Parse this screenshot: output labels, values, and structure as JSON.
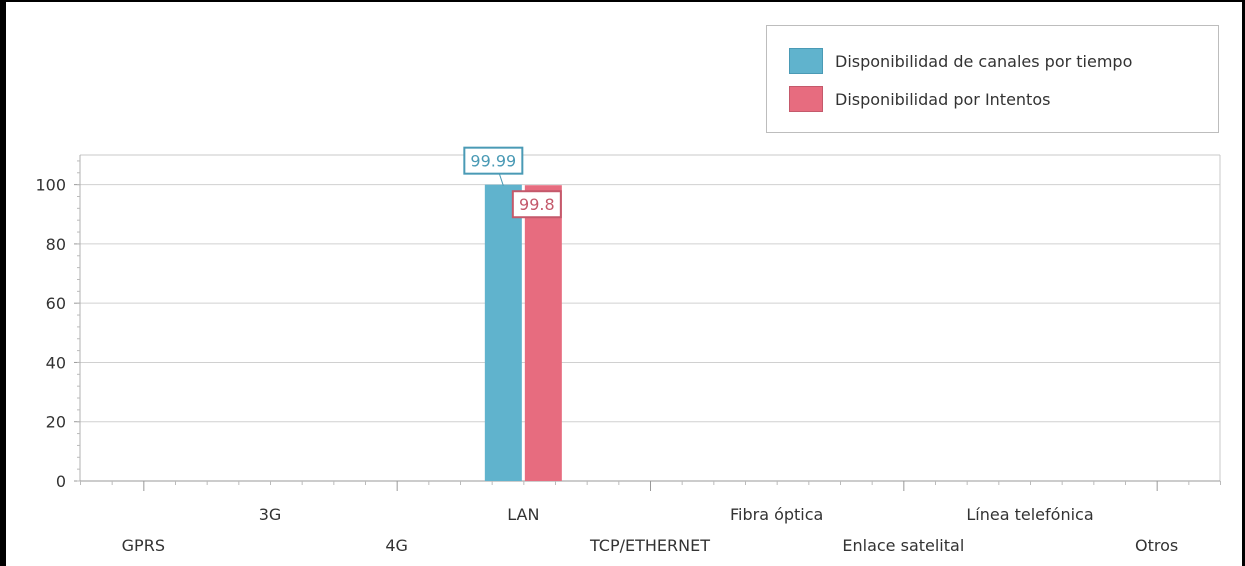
{
  "chart_data": {
    "type": "bar",
    "categories": [
      "GPRS",
      "3G",
      "4G",
      "LAN",
      "TCP/ETHERNET",
      "Fibra óptica",
      "Enlace satelital",
      "Línea telefónica",
      "Otros"
    ],
    "series": [
      {
        "name": "Disponibilidad de canales por tiempo",
        "color": "#60b3cd",
        "border": "#4a9ab5",
        "values": [
          null,
          null,
          null,
          99.99,
          null,
          null,
          null,
          null,
          null
        ],
        "labels": [
          "",
          "",
          "",
          "99.99",
          "",
          "",
          "",
          "",
          ""
        ]
      },
      {
        "name": "Disponibilidad por Intentos",
        "color": "#e76c7f",
        "border": "#c4596b",
        "values": [
          null,
          null,
          null,
          99.8,
          null,
          null,
          null,
          null,
          null
        ],
        "labels": [
          "",
          "",
          "",
          "99.8",
          "",
          "",
          "",
          "",
          ""
        ]
      }
    ],
    "ylim": [
      0,
      110
    ],
    "yticks": [
      "0",
      "20",
      "40",
      "60",
      "80",
      "100"
    ],
    "grid": true,
    "legend_position": "top-right"
  }
}
